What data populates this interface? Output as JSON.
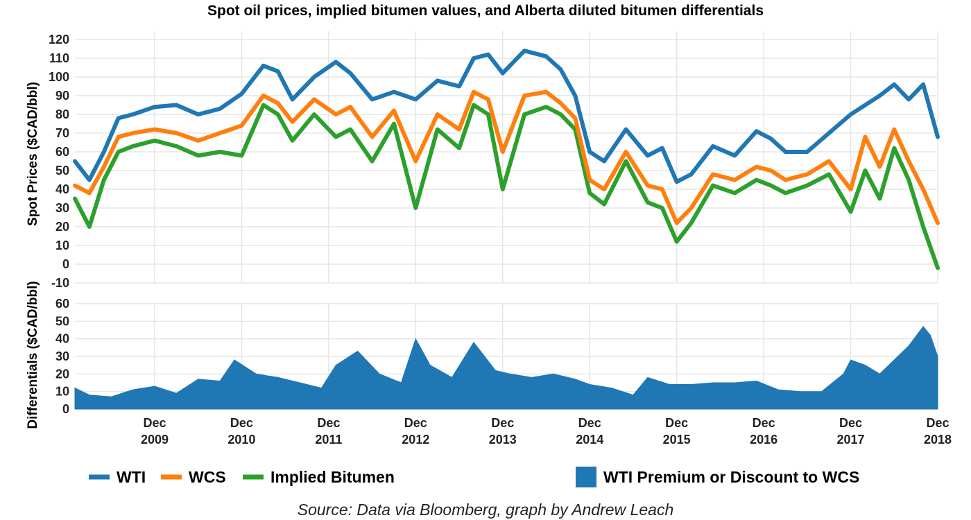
{
  "title": "Spot oil prices, implied bitumen values, and Alberta diluted bitumen differentials",
  "source": "Source: Data via Bloomberg, graph by Andrew Leach",
  "colors": {
    "wti": "#1f77b4",
    "wcs": "#ff7f0e",
    "bitumen": "#2ca02c",
    "differential": "#1f77b4",
    "grid": "#e6e6e6"
  },
  "chart_data": [
    {
      "type": "line",
      "panel": "top",
      "ylabel": "Spot Prices ($CAD/bbl)",
      "ylim": [
        -10,
        120
      ],
      "yticks": [
        -10,
        0,
        10,
        20,
        30,
        40,
        50,
        60,
        70,
        80,
        90,
        100,
        110,
        120
      ],
      "xlim": [
        "2009-01",
        "2018-12"
      ],
      "grid": true,
      "series": [
        {
          "name": "WTI",
          "x": [
            "2009-01",
            "2009-03",
            "2009-05",
            "2009-07",
            "2009-09",
            "2009-12",
            "2010-03",
            "2010-06",
            "2010-09",
            "2010-12",
            "2011-03",
            "2011-05",
            "2011-07",
            "2011-10",
            "2012-01",
            "2012-03",
            "2012-06",
            "2012-09",
            "2012-12",
            "2013-03",
            "2013-06",
            "2013-08",
            "2013-10",
            "2013-12",
            "2014-03",
            "2014-06",
            "2014-08",
            "2014-10",
            "2014-12",
            "2015-02",
            "2015-05",
            "2015-08",
            "2015-10",
            "2015-12",
            "2016-02",
            "2016-05",
            "2016-08",
            "2016-11",
            "2017-01",
            "2017-03",
            "2017-06",
            "2017-09",
            "2017-12",
            "2018-02",
            "2018-04",
            "2018-06",
            "2018-08",
            "2018-10",
            "2018-12"
          ],
          "values": [
            55,
            45,
            60,
            78,
            80,
            84,
            85,
            80,
            83,
            91,
            106,
            103,
            88,
            100,
            108,
            102,
            88,
            92,
            88,
            98,
            95,
            110,
            112,
            102,
            114,
            111,
            104,
            90,
            60,
            55,
            72,
            58,
            62,
            44,
            48,
            63,
            58,
            71,
            67,
            60,
            60,
            70,
            80,
            85,
            90,
            96,
            88,
            96,
            68
          ]
        },
        {
          "name": "WCS",
          "x": [
            "2009-01",
            "2009-03",
            "2009-05",
            "2009-07",
            "2009-09",
            "2009-12",
            "2010-03",
            "2010-06",
            "2010-09",
            "2010-12",
            "2011-03",
            "2011-05",
            "2011-07",
            "2011-10",
            "2012-01",
            "2012-03",
            "2012-06",
            "2012-09",
            "2012-12",
            "2013-03",
            "2013-06",
            "2013-08",
            "2013-10",
            "2013-12",
            "2014-03",
            "2014-06",
            "2014-08",
            "2014-10",
            "2014-12",
            "2015-02",
            "2015-05",
            "2015-08",
            "2015-10",
            "2015-12",
            "2016-02",
            "2016-05",
            "2016-08",
            "2016-11",
            "2017-01",
            "2017-03",
            "2017-06",
            "2017-09",
            "2017-12",
            "2018-02",
            "2018-04",
            "2018-06",
            "2018-08",
            "2018-10",
            "2018-12"
          ],
          "values": [
            42,
            38,
            52,
            68,
            70,
            72,
            70,
            66,
            70,
            74,
            90,
            86,
            76,
            88,
            80,
            84,
            68,
            82,
            55,
            80,
            72,
            92,
            88,
            60,
            90,
            92,
            86,
            78,
            45,
            40,
            60,
            42,
            40,
            22,
            30,
            48,
            45,
            52,
            50,
            45,
            48,
            55,
            40,
            68,
            52,
            72,
            55,
            40,
            22
          ]
        },
        {
          "name": "Implied Bitumen",
          "x": [
            "2009-01",
            "2009-03",
            "2009-05",
            "2009-07",
            "2009-09",
            "2009-12",
            "2010-03",
            "2010-06",
            "2010-09",
            "2010-12",
            "2011-03",
            "2011-05",
            "2011-07",
            "2011-10",
            "2012-01",
            "2012-03",
            "2012-06",
            "2012-09",
            "2012-12",
            "2013-03",
            "2013-06",
            "2013-08",
            "2013-10",
            "2013-12",
            "2014-03",
            "2014-06",
            "2014-08",
            "2014-10",
            "2014-12",
            "2015-02",
            "2015-05",
            "2015-08",
            "2015-10",
            "2015-12",
            "2016-02",
            "2016-05",
            "2016-08",
            "2016-11",
            "2017-01",
            "2017-03",
            "2017-06",
            "2017-09",
            "2017-12",
            "2018-02",
            "2018-04",
            "2018-06",
            "2018-08",
            "2018-10",
            "2018-12"
          ],
          "values": [
            35,
            20,
            45,
            60,
            63,
            66,
            63,
            58,
            60,
            58,
            85,
            80,
            66,
            80,
            68,
            72,
            55,
            75,
            30,
            72,
            62,
            85,
            80,
            40,
            80,
            84,
            80,
            72,
            38,
            32,
            55,
            33,
            30,
            12,
            22,
            42,
            38,
            45,
            42,
            38,
            42,
            48,
            28,
            50,
            35,
            62,
            45,
            20,
            -2
          ]
        }
      ]
    },
    {
      "type": "area",
      "panel": "bottom",
      "ylabel": "Differentials ($CAD/bbl)",
      "ylim": [
        0,
        60
      ],
      "yticks": [
        0,
        10,
        20,
        30,
        40,
        50,
        60
      ],
      "xlim": [
        "2009-01",
        "2018-12"
      ],
      "grid": true,
      "xticks": [
        "Dec 2009",
        "Dec 2010",
        "Dec 2011",
        "Dec 2012",
        "Dec 2013",
        "Dec 2014",
        "Dec 2015",
        "Dec 2016",
        "Dec 2017",
        "Dec 2018"
      ],
      "series": [
        {
          "name": "WTI Premium or Discount to WCS",
          "x": [
            "2009-01",
            "2009-03",
            "2009-06",
            "2009-09",
            "2009-12",
            "2010-03",
            "2010-06",
            "2010-09",
            "2010-11",
            "2011-02",
            "2011-05",
            "2011-08",
            "2011-11",
            "2012-01",
            "2012-04",
            "2012-07",
            "2012-10",
            "2012-12",
            "2013-02",
            "2013-05",
            "2013-08",
            "2013-11",
            "2014-01",
            "2014-04",
            "2014-07",
            "2014-10",
            "2014-12",
            "2015-03",
            "2015-06",
            "2015-08",
            "2015-11",
            "2016-02",
            "2016-05",
            "2016-08",
            "2016-11",
            "2017-02",
            "2017-05",
            "2017-08",
            "2017-11",
            "2017-12",
            "2018-02",
            "2018-04",
            "2018-06",
            "2018-08",
            "2018-10",
            "2018-11",
            "2018-12"
          ],
          "values": [
            12,
            8,
            7,
            11,
            13,
            9,
            17,
            16,
            28,
            20,
            18,
            15,
            12,
            25,
            33,
            20,
            15,
            40,
            25,
            18,
            38,
            22,
            20,
            18,
            20,
            17,
            14,
            12,
            8,
            18,
            14,
            14,
            15,
            15,
            16,
            11,
            10,
            10,
            20,
            28,
            25,
            20,
            28,
            36,
            47,
            42,
            30
          ]
        }
      ]
    }
  ],
  "xtick_labels": [
    {
      "month": "Dec",
      "year": "2009"
    },
    {
      "month": "Dec",
      "year": "2010"
    },
    {
      "month": "Dec",
      "year": "2011"
    },
    {
      "month": "Dec",
      "year": "2012"
    },
    {
      "month": "Dec",
      "year": "2013"
    },
    {
      "month": "Dec",
      "year": "2014"
    },
    {
      "month": "Dec",
      "year": "2015"
    },
    {
      "month": "Dec",
      "year": "2016"
    },
    {
      "month": "Dec",
      "year": "2017"
    },
    {
      "month": "Dec",
      "year": "2018"
    }
  ],
  "legend": {
    "placement": "bottom",
    "items": [
      {
        "label": "WTI",
        "kind": "line",
        "color": "#1f77b4"
      },
      {
        "label": "WCS",
        "kind": "line",
        "color": "#ff7f0e"
      },
      {
        "label": "Implied Bitumen",
        "kind": "line",
        "color": "#2ca02c"
      },
      {
        "label": "WTI Premium or Discount to WCS",
        "kind": "box",
        "color": "#1f77b4"
      }
    ]
  }
}
